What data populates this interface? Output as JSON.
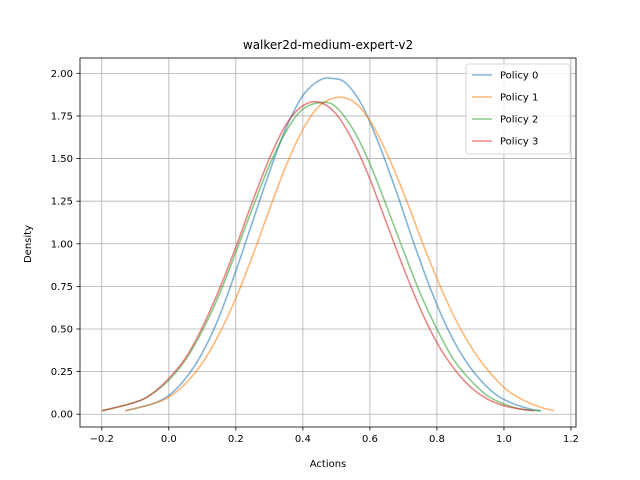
{
  "chart_data": {
    "type": "line",
    "title": "walker2d-medium-expert-v2",
    "xlabel": "Actions",
    "ylabel": "Density",
    "xlim": [
      -0.265,
      1.215
    ],
    "ylim": [
      -0.075,
      2.09
    ],
    "xticks": [
      "−0.2",
      "0.0",
      "0.2",
      "0.4",
      "0.6",
      "0.8",
      "1.0",
      "1.2"
    ],
    "xtick_values": [
      -0.2,
      0.0,
      0.2,
      0.4,
      0.6,
      0.8,
      1.0,
      1.2
    ],
    "yticks": [
      "0.00",
      "0.25",
      "0.50",
      "0.75",
      "1.00",
      "1.25",
      "1.50",
      "1.75",
      "2.00"
    ],
    "ytick_values": [
      0.0,
      0.25,
      0.5,
      0.75,
      1.0,
      1.25,
      1.5,
      1.75,
      2.0
    ],
    "grid": true,
    "legend_position": "top-right",
    "series": [
      {
        "name": "Policy 0",
        "color": "#1f77b4",
        "x": [
          -0.13,
          -0.05,
          0.0,
          0.05,
          0.1,
          0.15,
          0.2,
          0.25,
          0.3,
          0.35,
          0.4,
          0.45,
          0.49,
          0.53,
          0.58,
          0.63,
          0.68,
          0.73,
          0.78,
          0.83,
          0.88,
          0.93,
          0.98,
          1.03,
          1.08,
          1.11
        ],
        "y": [
          0.02,
          0.06,
          0.11,
          0.21,
          0.36,
          0.57,
          0.84,
          1.13,
          1.42,
          1.68,
          1.87,
          1.96,
          1.97,
          1.94,
          1.8,
          1.57,
          1.3,
          1.01,
          0.74,
          0.51,
          0.33,
          0.2,
          0.11,
          0.06,
          0.03,
          0.02
        ]
      },
      {
        "name": "Policy 1",
        "color": "#ff7f0e",
        "x": [
          -0.13,
          -0.05,
          0.0,
          0.05,
          0.1,
          0.15,
          0.2,
          0.25,
          0.3,
          0.35,
          0.4,
          0.45,
          0.51,
          0.56,
          0.61,
          0.66,
          0.71,
          0.76,
          0.81,
          0.86,
          0.91,
          0.96,
          1.01,
          1.06,
          1.11,
          1.15
        ],
        "y": [
          0.02,
          0.06,
          0.1,
          0.18,
          0.3,
          0.47,
          0.68,
          0.93,
          1.2,
          1.46,
          1.67,
          1.81,
          1.86,
          1.82,
          1.69,
          1.49,
          1.25,
          0.99,
          0.75,
          0.54,
          0.37,
          0.24,
          0.14,
          0.08,
          0.04,
          0.02
        ]
      },
      {
        "name": "Policy 2",
        "color": "#2ca02c",
        "x": [
          -0.2,
          -0.1,
          -0.05,
          0.0,
          0.05,
          0.1,
          0.15,
          0.2,
          0.25,
          0.3,
          0.35,
          0.4,
          0.46,
          0.5,
          0.55,
          0.6,
          0.65,
          0.7,
          0.75,
          0.8,
          0.85,
          0.9,
          0.95,
          1.0,
          1.05,
          1.11
        ],
        "y": [
          0.02,
          0.07,
          0.12,
          0.2,
          0.32,
          0.49,
          0.7,
          0.95,
          1.21,
          1.46,
          1.66,
          1.79,
          1.83,
          1.8,
          1.67,
          1.47,
          1.22,
          0.96,
          0.71,
          0.5,
          0.32,
          0.2,
          0.11,
          0.06,
          0.03,
          0.02
        ]
      },
      {
        "name": "Policy 3",
        "color": "#d62728",
        "x": [
          -0.2,
          -0.1,
          -0.05,
          0.0,
          0.05,
          0.1,
          0.15,
          0.2,
          0.25,
          0.3,
          0.35,
          0.4,
          0.45,
          0.5,
          0.55,
          0.6,
          0.65,
          0.7,
          0.75,
          0.8,
          0.85,
          0.9,
          0.95,
          1.0,
          1.05,
          1.09
        ],
        "y": [
          0.02,
          0.07,
          0.12,
          0.21,
          0.33,
          0.51,
          0.73,
          0.98,
          1.25,
          1.5,
          1.7,
          1.81,
          1.83,
          1.76,
          1.6,
          1.38,
          1.12,
          0.86,
          0.62,
          0.42,
          0.27,
          0.16,
          0.09,
          0.05,
          0.03,
          0.02
        ]
      }
    ]
  }
}
